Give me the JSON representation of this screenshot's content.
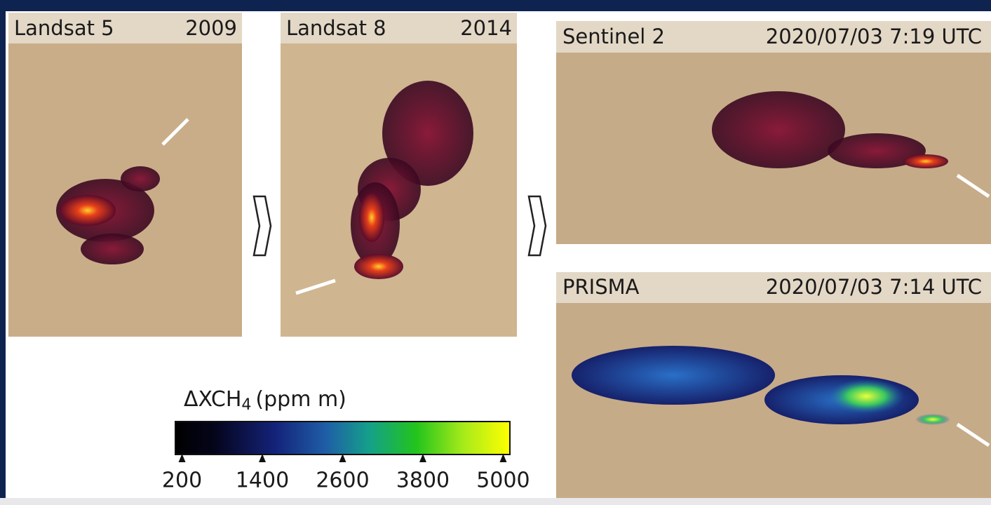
{
  "panels": [
    {
      "sensor": "Landsat 5",
      "date": "2009"
    },
    {
      "sensor": "Landsat 8",
      "date": "2014"
    },
    {
      "sensor": "Sentinel 2",
      "date": "2020/07/03 7:19 UTC"
    },
    {
      "sensor": "PRISMA",
      "date": "2020/07/03 7:14 UTC"
    }
  ],
  "colorbar": {
    "label": {
      "main": "ΔXCH",
      "sub": "4",
      "unit": "(ppm m)"
    },
    "lim": [
      100,
      5100
    ],
    "ticks": [
      200,
      1400,
      2600,
      3800,
      5000
    ]
  }
}
